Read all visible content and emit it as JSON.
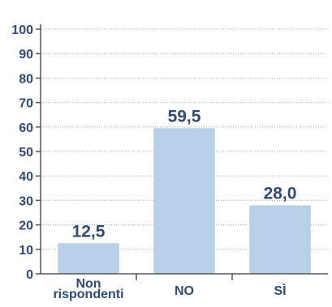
{
  "chart_data": {
    "type": "bar",
    "categories": [
      {
        "lines": [
          "Non",
          "rispondenti"
        ]
      },
      {
        "lines": [
          "NO"
        ]
      },
      {
        "lines": [
          "SÌ"
        ]
      }
    ],
    "values": [
      12.5,
      59.5,
      28.0
    ],
    "data_labels": [
      "12,5",
      "59,5",
      "28,0"
    ],
    "y_ticks": [
      0,
      10,
      20,
      30,
      40,
      50,
      60,
      70,
      80,
      90,
      100
    ],
    "ylim": [
      0,
      100
    ],
    "grid": true,
    "grid_style": "dotted",
    "colors": {
      "bar": "#b8cfe8",
      "text": "#2e4a77",
      "axis": "#555555",
      "grid": "#9aa5b5"
    }
  }
}
